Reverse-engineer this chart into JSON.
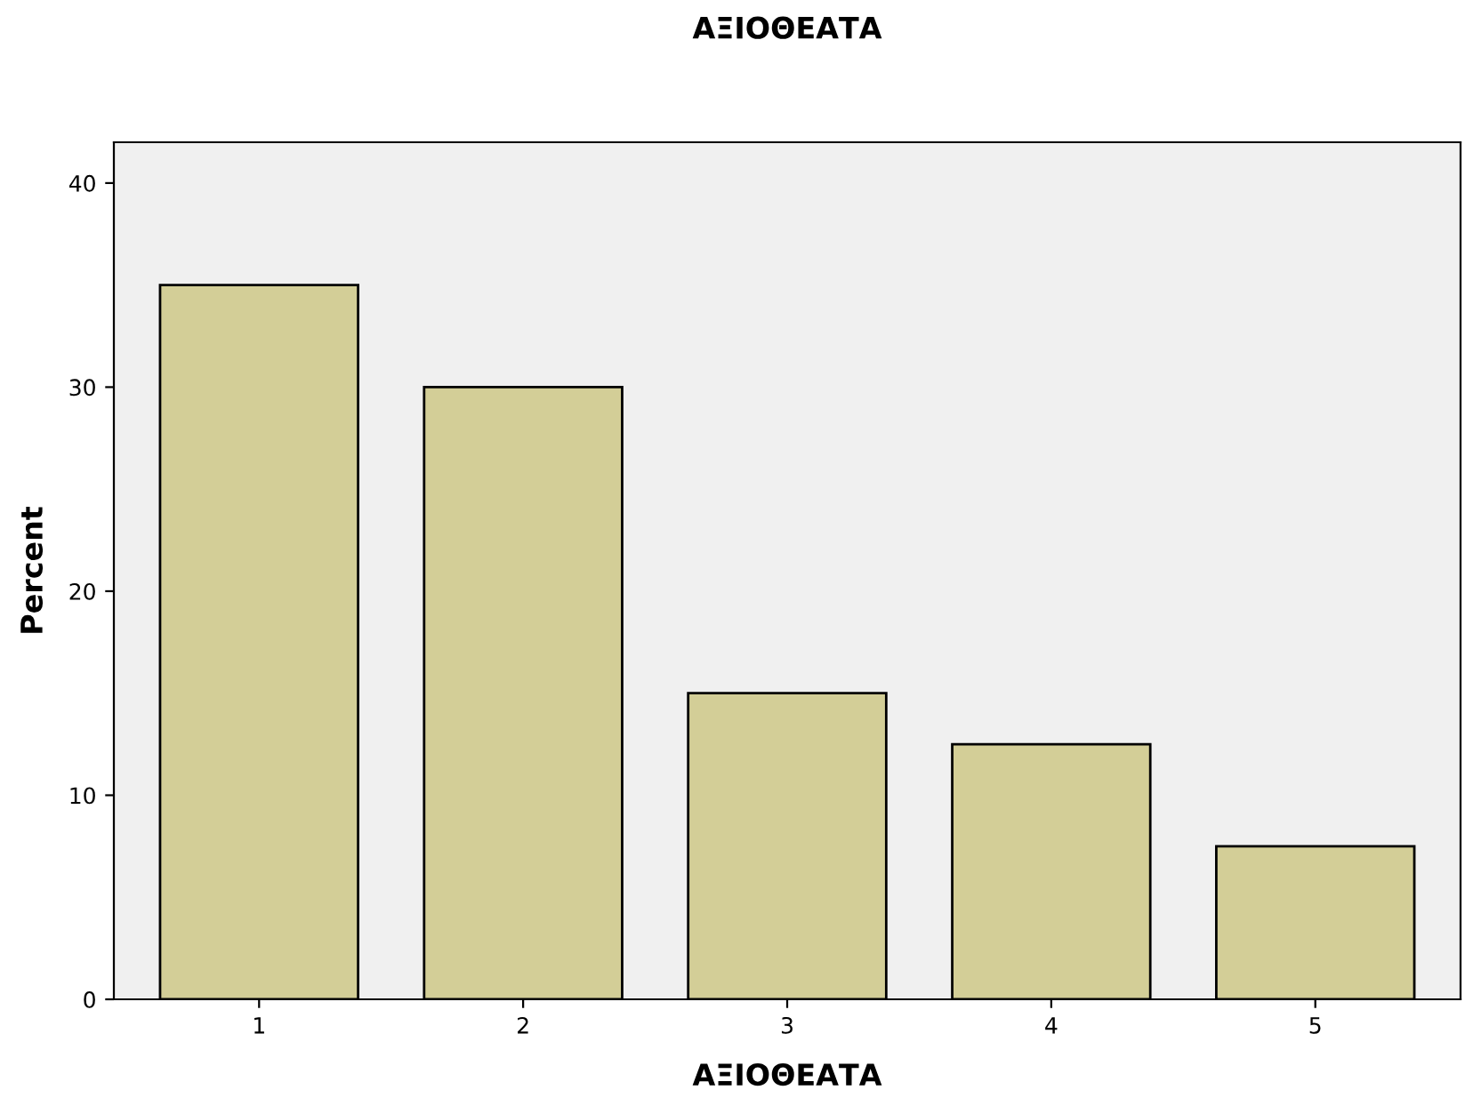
{
  "chart_data": {
    "type": "bar",
    "title": "ΑΞΙΟΘΕΑΤΑ",
    "xlabel": "ΑΞΙΟΘΕΑΤΑ",
    "ylabel": "Percent",
    "categories": [
      "1",
      "2",
      "3",
      "4",
      "5"
    ],
    "values": [
      35,
      30,
      15,
      12.5,
      7.5
    ],
    "color": "#d3ce97",
    "ylim": [
      0,
      42
    ],
    "yticks": [
      0,
      10,
      20,
      30,
      40
    ],
    "grid": false,
    "legend": false
  }
}
